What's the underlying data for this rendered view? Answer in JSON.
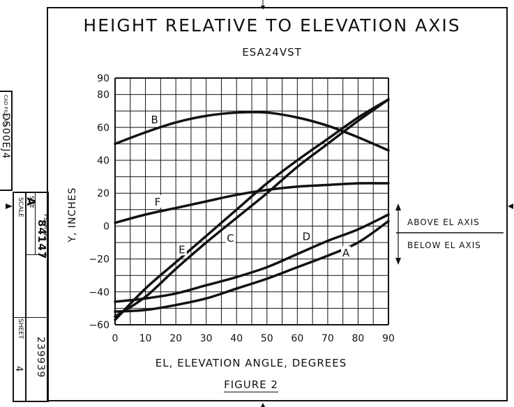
{
  "header": {
    "title": "HEIGHT RELATIVE TO ELEVATION AXIS",
    "subtitle": "ESA24VST",
    "figure": "FIGURE 2"
  },
  "annotations": {
    "above": "ABOVE EL AXIS",
    "below": "BELOW EL AXIS"
  },
  "title_block": {
    "cad_file_label": "CAD FILE NO.",
    "cad_file_no": "DS00EJ4",
    "scale_label": "SCALE",
    "size_label": "SIZE",
    "size_value": "A",
    "fscm_label": "FSCM NO.",
    "fscm_value": "84147",
    "drawing_no": "239939",
    "sheet_label": "SHEET",
    "sheet_value": "4"
  },
  "chart_data": {
    "type": "line",
    "title": "HEIGHT RELATIVE TO ELEVATION AXIS",
    "subtitle": "ESA24VST",
    "xlabel": "EL, ELEVATION ANGLE, DEGREES",
    "ylabel": "Y, INCHES",
    "xlim": [
      0,
      90
    ],
    "ylim": [
      -60,
      90
    ],
    "xticks": [
      0,
      10,
      20,
      30,
      40,
      50,
      60,
      70,
      80,
      90
    ],
    "yticks": [
      90,
      80,
      60,
      40,
      20,
      0,
      -20,
      -40,
      -60
    ],
    "grid": true,
    "legend": "none",
    "series": [
      {
        "name": "A",
        "x": [
          0,
          10,
          20,
          30,
          40,
          50,
          60,
          70,
          80,
          90
        ],
        "y": [
          -52,
          -51,
          -48,
          -44,
          -38,
          -32,
          -25,
          -18,
          -10,
          3
        ],
        "label_at": [
          76,
          -16
        ]
      },
      {
        "name": "B",
        "x": [
          0,
          10,
          20,
          30,
          40,
          50,
          60,
          70,
          80,
          90
        ],
        "y": [
          50,
          57,
          63,
          67,
          69,
          69,
          66,
          61,
          54,
          46
        ],
        "label_at": [
          13,
          65
        ]
      },
      {
        "name": "C",
        "x": [
          0,
          10,
          20,
          30,
          40,
          50,
          60,
          70,
          80,
          90
        ],
        "y": [
          -55,
          -43,
          -26,
          -10,
          5,
          20,
          36,
          50,
          64,
          77
        ],
        "label_at": [
          38,
          -7
        ]
      },
      {
        "name": "D",
        "x": [
          0,
          10,
          20,
          30,
          40,
          50,
          60,
          70,
          80,
          90
        ],
        "y": [
          -46,
          -44,
          -41,
          -36,
          -31,
          -25,
          -17,
          -9,
          -2,
          7
        ],
        "label_at": [
          63,
          -6
        ]
      },
      {
        "name": "E",
        "x": [
          0,
          10,
          20,
          30,
          40,
          50,
          60,
          70,
          80,
          90
        ],
        "y": [
          -57,
          -38,
          -22,
          -6,
          10,
          26,
          40,
          53,
          66,
          77
        ],
        "label_at": [
          22,
          -14
        ]
      },
      {
        "name": "F",
        "x": [
          0,
          10,
          20,
          30,
          40,
          50,
          60,
          70,
          80,
          90
        ],
        "y": [
          2,
          7,
          11,
          15,
          19,
          22,
          24,
          25,
          26,
          26
        ],
        "label_at": [
          14,
          15
        ]
      }
    ]
  }
}
